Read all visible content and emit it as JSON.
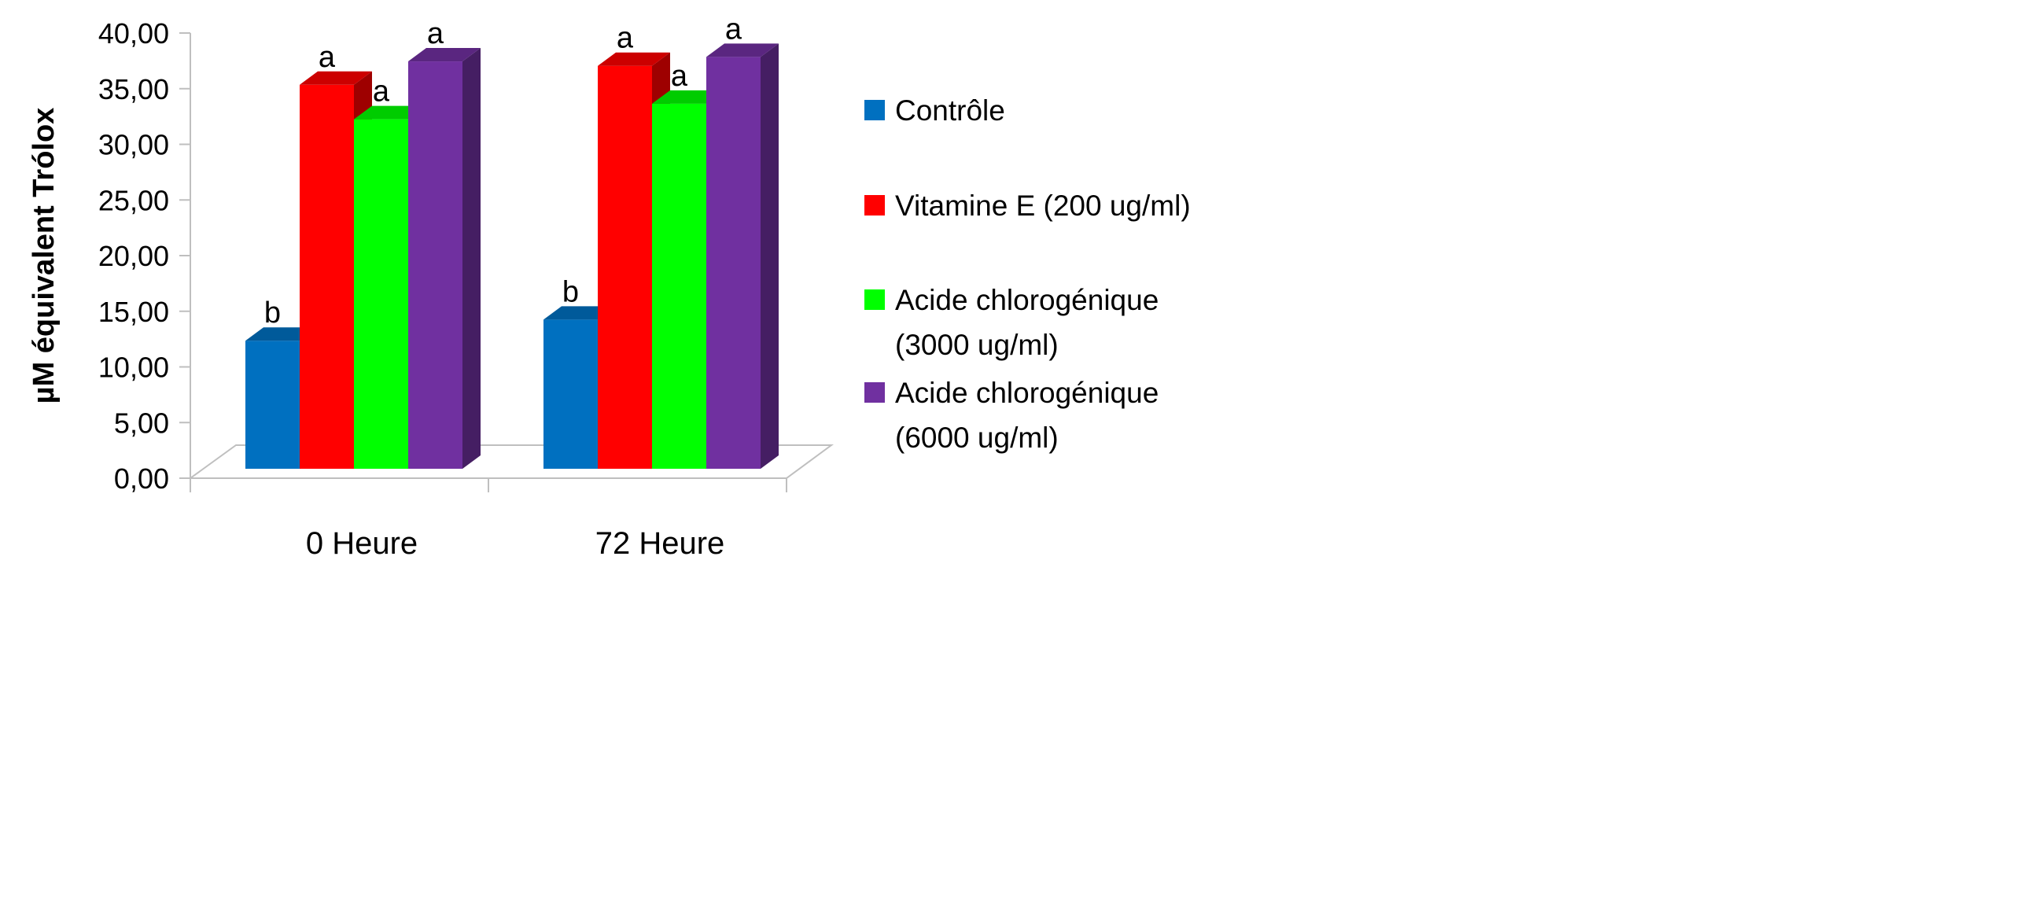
{
  "chart_data": {
    "type": "bar",
    "categories": [
      "0 Heure",
      "72 Heure"
    ],
    "series": [
      {
        "name": "Contrôle",
        "legend_lines": [
          "Contrôle"
        ],
        "color": "#0070C0",
        "values": [
          13.2,
          15.1
        ],
        "labels": [
          "b",
          "b"
        ]
      },
      {
        "name": "Vitamine E (200 ug/ml)",
        "legend_lines": [
          "Vitamine E (200 ug/ml)"
        ],
        "color": "#FF0000",
        "values": [
          36.2,
          37.9
        ],
        "labels": [
          "a",
          "a"
        ]
      },
      {
        "name": "Acide chlorogénique (3000 ug/ml)",
        "legend_lines": [
          "Acide chlorogénique",
          "(3000 ug/ml)"
        ],
        "color": "#00FF00",
        "values": [
          33.1,
          34.5
        ],
        "labels": [
          "a",
          "a"
        ]
      },
      {
        "name": "Acide chlorogénique (6000 ug/ml)",
        "legend_lines": [
          "Acide chlorogénique",
          "(6000 ug/ml)"
        ],
        "color": "#7030A0",
        "values": [
          38.3,
          38.7
        ],
        "labels": [
          "a",
          "a"
        ]
      }
    ],
    "ylabel": "µM équivalent Trólox",
    "xlabel": "",
    "ylim": [
      0,
      40
    ],
    "yticks": [
      "0,00",
      "5,00",
      "10,00",
      "15,00",
      "20,00",
      "25,00",
      "30,00",
      "35,00",
      "40,00"
    ],
    "grid": false,
    "legend_position": "right",
    "style": "3d-clustered-bar"
  }
}
